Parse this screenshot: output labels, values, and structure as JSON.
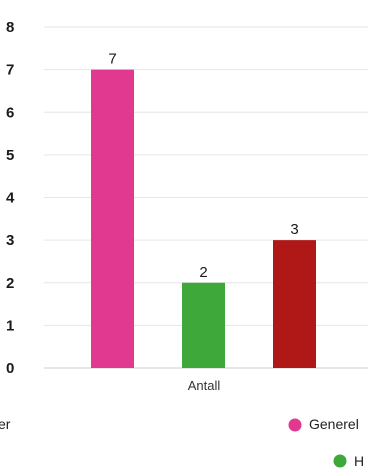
{
  "chart_data": {
    "type": "bar",
    "categories": [
      "Antall"
    ],
    "series": [
      {
        "name": "Generel",
        "values": [
          7
        ],
        "color": "#e0398f"
      },
      {
        "name": "H",
        "values": [
          2
        ],
        "color": "#3fa83a"
      },
      {
        "name": "",
        "values": [
          3
        ],
        "color": "#b01818"
      }
    ],
    "value_labels": [
      "7",
      "2",
      "3"
    ],
    "yticks": [
      "0",
      "1",
      "2",
      "3",
      "4",
      "5",
      "6",
      "7",
      "8"
    ],
    "ylim": [
      0,
      8
    ],
    "xlabel": "",
    "ylabel": "",
    "title": "",
    "grid": true,
    "legend": {
      "position": "bottom",
      "cut_off_text": "er",
      "entries": [
        "Generel",
        "H"
      ]
    }
  }
}
